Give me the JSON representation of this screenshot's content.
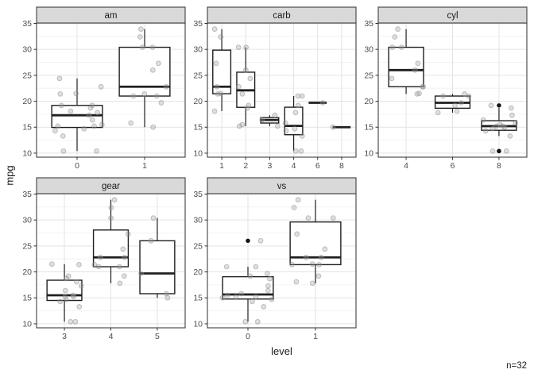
{
  "figure": {
    "y_axis_title": "mpg",
    "x_axis_title": "level",
    "caption": "n=32"
  },
  "colors": {
    "strip_fill": "#d9d9d9",
    "strip_text": "#1a1a1a",
    "panel_border": "#404040",
    "panel_fill": "#ffffff",
    "grid_major": "#e3e3e3",
    "grid_minor": "#f0f0f0",
    "tick_mark": "#333333",
    "tick_label": "#4d4d4d",
    "box_stroke": "#1f1f1f",
    "jitter_fill": "#9a9a9a",
    "jitter_stroke": "#8c8c8c",
    "outlier_fill": "#111111"
  },
  "chart_data": {
    "type": "boxplot",
    "title": "",
    "ylabel": "mpg",
    "xlabel": "level",
    "caption": "n=32",
    "grid": "major+minor horizontal, major vertical at categories",
    "legend": "none",
    "y_ticks": [
      10,
      15,
      20,
      25,
      30,
      35
    ],
    "y_minor": [
      12.5,
      17.5,
      22.5,
      27.5,
      32.5
    ],
    "ylim": [
      9.225,
      35.075
    ],
    "facets": [
      {
        "name": "am",
        "row": 0,
        "col": 0,
        "levels": [
          "0",
          "1"
        ],
        "boxes": [
          {
            "level": "0",
            "whislo": 10.4,
            "q1": 14.95,
            "med": 17.3,
            "q3": 19.2,
            "whishi": 24.4,
            "outliers": []
          },
          {
            "level": "1",
            "whislo": 15.0,
            "q1": 21.0,
            "med": 22.8,
            "q3": 30.4,
            "whishi": 33.9,
            "outliers": []
          }
        ]
      },
      {
        "name": "carb",
        "row": 0,
        "col": 1,
        "levels": [
          "1",
          "2",
          "3",
          "4",
          "6",
          "8"
        ],
        "boxes": [
          {
            "level": "1",
            "whislo": 18.1,
            "q1": 21.45,
            "med": 22.8,
            "q3": 29.85,
            "whishi": 33.9,
            "outliers": []
          },
          {
            "level": "2",
            "whislo": 15.2,
            "q1": 18.825,
            "med": 22.1,
            "q3": 25.6,
            "whishi": 30.4,
            "outliers": []
          },
          {
            "level": "3",
            "whislo": 15.2,
            "q1": 15.8,
            "med": 16.4,
            "q3": 16.85,
            "whishi": 17.3,
            "outliers": []
          },
          {
            "level": "4",
            "whislo": 10.4,
            "q1": 13.55,
            "med": 15.25,
            "q3": 18.85,
            "whishi": 21.0,
            "outliers": []
          },
          {
            "level": "6",
            "whislo": 19.7,
            "q1": 19.7,
            "med": 19.7,
            "q3": 19.7,
            "whishi": 19.7,
            "outliers": []
          },
          {
            "level": "8",
            "whislo": 15.0,
            "q1": 15.0,
            "med": 15.0,
            "q3": 15.0,
            "whishi": 15.0,
            "outliers": []
          }
        ]
      },
      {
        "name": "cyl",
        "row": 0,
        "col": 2,
        "levels": [
          "4",
          "6",
          "8"
        ],
        "boxes": [
          {
            "level": "4",
            "whislo": 21.4,
            "q1": 22.8,
            "med": 26.0,
            "q3": 30.4,
            "whishi": 33.9,
            "outliers": []
          },
          {
            "level": "6",
            "whislo": 17.8,
            "q1": 18.65,
            "med": 19.7,
            "q3": 21.0,
            "whishi": 21.4,
            "outliers": []
          },
          {
            "level": "8",
            "whislo": 13.3,
            "q1": 14.4,
            "med": 15.2,
            "q3": 16.25,
            "whishi": 18.7,
            "outliers": [
              10.4,
              10.4,
              19.2
            ]
          }
        ]
      },
      {
        "name": "gear",
        "row": 1,
        "col": 0,
        "levels": [
          "3",
          "4",
          "5"
        ],
        "boxes": [
          {
            "level": "3",
            "whislo": 10.4,
            "q1": 14.5,
            "med": 15.5,
            "q3": 18.4,
            "whishi": 21.5,
            "outliers": []
          },
          {
            "level": "4",
            "whislo": 17.8,
            "q1": 21.0,
            "med": 22.8,
            "q3": 28.075,
            "whishi": 33.9,
            "outliers": []
          },
          {
            "level": "5",
            "whislo": 15.0,
            "q1": 15.8,
            "med": 19.7,
            "q3": 26.0,
            "whishi": 30.4,
            "outliers": []
          }
        ]
      },
      {
        "name": "vs",
        "row": 1,
        "col": 1,
        "levels": [
          "0",
          "1"
        ],
        "boxes": [
          {
            "level": "0",
            "whislo": 10.4,
            "q1": 14.775,
            "med": 15.65,
            "q3": 19.075,
            "whishi": 21.0,
            "outliers": [
              26.0
            ]
          },
          {
            "level": "1",
            "whislo": 17.8,
            "q1": 21.4,
            "med": 22.8,
            "q3": 29.625,
            "whishi": 33.9,
            "outliers": []
          }
        ]
      }
    ],
    "dataset": {
      "columns": [
        "mpg",
        "am",
        "carb",
        "cyl",
        "gear",
        "vs"
      ],
      "rows": [
        [
          21.0,
          1,
          4,
          6,
          4,
          0
        ],
        [
          21.0,
          1,
          4,
          6,
          4,
          0
        ],
        [
          22.8,
          1,
          1,
          4,
          4,
          1
        ],
        [
          21.4,
          0,
          1,
          6,
          3,
          1
        ],
        [
          18.7,
          0,
          2,
          8,
          3,
          0
        ],
        [
          18.1,
          0,
          1,
          6,
          3,
          1
        ],
        [
          14.3,
          0,
          4,
          8,
          3,
          0
        ],
        [
          24.4,
          0,
          2,
          4,
          4,
          1
        ],
        [
          22.8,
          0,
          2,
          4,
          4,
          1
        ],
        [
          19.2,
          0,
          4,
          6,
          4,
          1
        ],
        [
          17.8,
          0,
          4,
          6,
          4,
          1
        ],
        [
          16.4,
          0,
          3,
          8,
          3,
          0
        ],
        [
          17.3,
          0,
          3,
          8,
          3,
          0
        ],
        [
          15.2,
          0,
          3,
          8,
          3,
          0
        ],
        [
          10.4,
          0,
          4,
          8,
          3,
          0
        ],
        [
          10.4,
          0,
          4,
          8,
          3,
          0
        ],
        [
          14.7,
          0,
          4,
          8,
          3,
          0
        ],
        [
          32.4,
          1,
          1,
          4,
          4,
          1
        ],
        [
          30.4,
          1,
          2,
          4,
          4,
          1
        ],
        [
          33.9,
          1,
          1,
          4,
          4,
          1
        ],
        [
          21.5,
          0,
          1,
          4,
          3,
          1
        ],
        [
          15.5,
          0,
          2,
          8,
          3,
          0
        ],
        [
          15.2,
          0,
          2,
          8,
          3,
          0
        ],
        [
          13.3,
          0,
          4,
          8,
          3,
          0
        ],
        [
          19.2,
          0,
          2,
          8,
          3,
          0
        ],
        [
          27.3,
          1,
          1,
          4,
          4,
          1
        ],
        [
          26.0,
          1,
          2,
          4,
          5,
          0
        ],
        [
          30.4,
          1,
          2,
          4,
          5,
          1
        ],
        [
          15.8,
          1,
          4,
          8,
          5,
          0
        ],
        [
          19.7,
          1,
          6,
          6,
          5,
          0
        ],
        [
          15.0,
          1,
          8,
          8,
          5,
          0
        ],
        [
          21.4,
          1,
          2,
          4,
          4,
          1
        ]
      ]
    }
  }
}
